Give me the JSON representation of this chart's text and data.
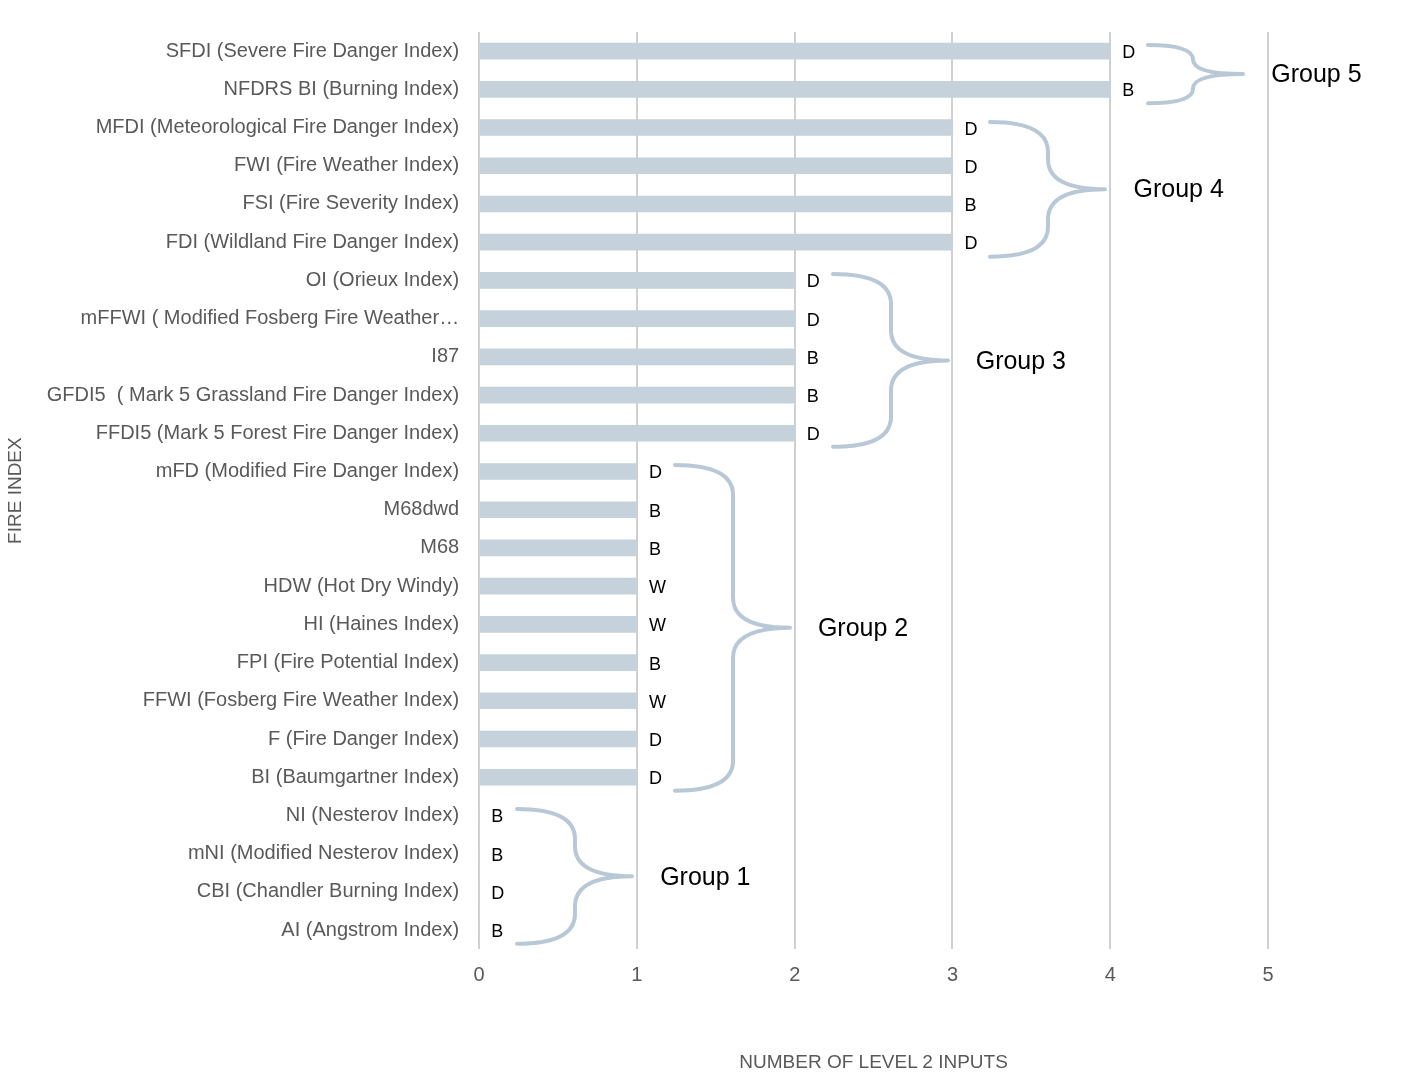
{
  "chart_data": {
    "type": "bar",
    "orientation": "horizontal",
    "xlabel": "NUMBER OF LEVEL 2 INPUTS",
    "ylabel": "FIRE INDEX",
    "categories": [
      "SFDI (Severe Fire Danger Index)",
      "NFDRS BI (Burning Index)",
      "MFDI (Meteorological Fire Danger Index)",
      "FWI (Fire Weather Index)",
      "FSI (Fire Severity Index)",
      "FDI (Wildland Fire Danger Index)",
      "OI (Orieux Index)",
      "mFFWI ( Modified Fosberg Fire Weather…",
      "I87",
      "GFDI5  ( Mark 5 Grassland Fire Danger Index)",
      "FFDI5 (Mark 5 Forest Fire Danger Index)",
      "mFD (Modified Fire Danger Index)",
      "M68dwd",
      "M68",
      "HDW (Hot Dry Windy)",
      "HI (Haines Index)",
      "FPI (Fire Potential Index)",
      "FFWI (Fosberg Fire Weather Index)",
      "F (Fire Danger Index)",
      "BI (Baumgartner Index)",
      "NI (Nesterov Index)",
      "mNI (Modified Nesterov Index)",
      "CBI (Chandler Burning Index)",
      "AI (Angstrom Index)"
    ],
    "values": [
      4,
      4,
      3,
      3,
      3,
      3,
      2,
      2,
      2,
      2,
      2,
      1,
      1,
      1,
      1,
      1,
      1,
      1,
      1,
      1,
      0,
      0,
      0,
      0
    ],
    "value_labels": [
      "D",
      "B",
      "D",
      "D",
      "B",
      "D",
      "D",
      "D",
      "B",
      "B",
      "D",
      "D",
      "B",
      "B",
      "W",
      "W",
      "B",
      "W",
      "D",
      "D",
      "B",
      "B",
      "D",
      "B"
    ],
    "color": "#c5d1db",
    "xlim": [
      0,
      5
    ],
    "xticks": [
      0,
      1,
      2,
      3,
      4,
      5
    ],
    "grid": "x",
    "annotations": [
      "Group 5",
      "Group 4",
      "Group 3",
      "Group 2",
      "Group 1"
    ]
  }
}
